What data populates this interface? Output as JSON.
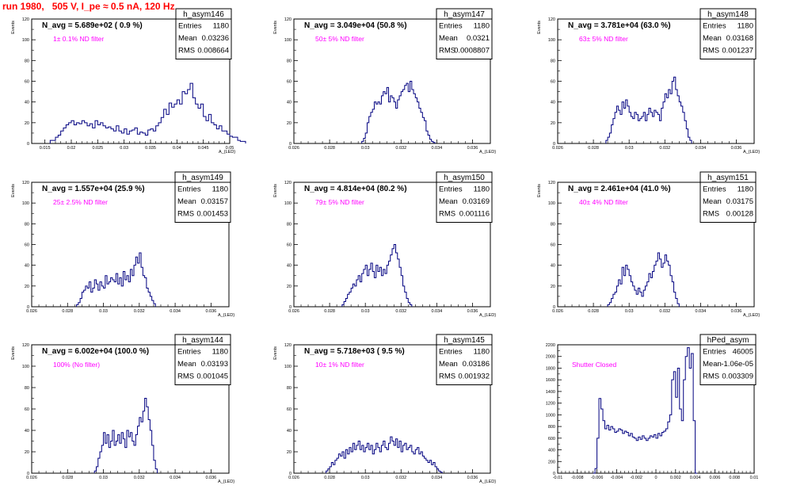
{
  "page_title": "run 1980,   505 V, I_pe ≈ 0.5 nA, 120 Hz",
  "colors": {
    "histogram": "#000080",
    "filter_label": "#ff00ff",
    "title": "#ff0000",
    "axis": "#000000"
  },
  "chart_data": [
    {
      "type": "histogram",
      "name": "h_asym146",
      "header": "N_avg = 5.689e+02 ( 0.9 %)",
      "label": "1± 0.1% ND filter",
      "stats": [
        [
          "Entries",
          "1180"
        ],
        [
          "Mean",
          "0.03236"
        ],
        [
          "RMS",
          "0.008664"
        ]
      ],
      "xlabel": "A_{LED}",
      "ylabel": "Events",
      "xlim": [
        0.0125,
        0.05
      ],
      "ylim": [
        0,
        120
      ],
      "xticks": [
        0.015,
        0.02,
        0.025,
        0.03,
        0.035,
        0.04,
        0.045,
        0.05
      ],
      "xticklabels": [
        "0.015",
        "0.02",
        "0.025",
        "0.03",
        "0.035",
        "0.04",
        "0.045",
        "0.05"
      ],
      "yticks": [
        0,
        20,
        40,
        60,
        80,
        100,
        120
      ],
      "yticklabels": [
        "0",
        "20",
        "40",
        "60",
        "80",
        "100",
        "120"
      ],
      "bin_width": 0.0005,
      "x0": 0.016,
      "values": [
        3,
        3,
        6,
        8,
        12,
        15,
        18,
        20,
        22,
        18,
        20,
        19,
        22,
        20,
        17,
        19,
        15,
        22,
        18,
        20,
        17,
        15,
        16,
        14,
        12,
        17,
        12,
        10,
        14,
        9,
        12,
        13,
        15,
        9,
        11,
        10,
        8,
        13,
        14,
        12,
        17,
        20,
        25,
        33,
        28,
        39,
        35,
        38,
        42,
        38,
        50,
        48,
        52,
        58,
        44,
        38,
        34,
        38,
        26,
        22,
        28,
        20,
        18,
        14,
        17,
        12,
        12,
        9,
        7,
        6,
        6,
        3,
        2,
        2
      ]
    },
    {
      "type": "histogram",
      "name": "h_asym147",
      "header": "N_avg = 3.049e+04 (50.8 %)",
      "label": "50± 5% ND filter",
      "stats": [
        [
          "Entries",
          "1180"
        ],
        [
          "Mean",
          "0.0321"
        ],
        [
          "RMS",
          "0.0008807"
        ]
      ],
      "xlabel": "A_{LED}",
      "ylabel": "Events",
      "xlim": [
        0.026,
        0.037
      ],
      "ylim": [
        0,
        120
      ],
      "xticks": [
        0.026,
        0.028,
        0.03,
        0.032,
        0.034,
        0.036
      ],
      "xticklabels": [
        "0.026",
        "0.028",
        "0.03",
        "0.032",
        "0.034",
        "0.036"
      ],
      "yticks": [
        0,
        20,
        40,
        60,
        80,
        100,
        120
      ],
      "yticklabels": [
        "0",
        "20",
        "40",
        "60",
        "80",
        "100",
        "120"
      ],
      "bin_width": 0.0001,
      "x0": 0.0298,
      "values": [
        2,
        5,
        10,
        20,
        26,
        30,
        33,
        40,
        38,
        40,
        38,
        46,
        50,
        48,
        54,
        40,
        46,
        44,
        40,
        34,
        42,
        46,
        50,
        52,
        56,
        58,
        50,
        60,
        52,
        48,
        44,
        40,
        34,
        30,
        25,
        22,
        12,
        8,
        4,
        2,
        1
      ]
    },
    {
      "type": "histogram",
      "name": "h_asym148",
      "header": "N_avg = 3.781e+04 (63.0 %)",
      "label": "63± 5% ND filter",
      "stats": [
        [
          "Entries",
          "1180"
        ],
        [
          "Mean",
          "0.03168"
        ],
        [
          "RMS",
          "0.001237"
        ]
      ],
      "xlabel": "A_{LED}",
      "ylabel": "Events",
      "xlim": [
        0.026,
        0.037
      ],
      "ylim": [
        0,
        120
      ],
      "xticks": [
        0.026,
        0.028,
        0.03,
        0.032,
        0.034,
        0.036
      ],
      "xticklabels": [
        "0.026",
        "0.028",
        "0.03",
        "0.032",
        "0.034",
        "0.036"
      ],
      "yticks": [
        0,
        20,
        40,
        60,
        80,
        100,
        120
      ],
      "yticklabels": [
        "0",
        "20",
        "40",
        "60",
        "80",
        "100",
        "120"
      ],
      "bin_width": 0.0001,
      "x0": 0.0287,
      "values": [
        3,
        6,
        10,
        18,
        24,
        30,
        36,
        32,
        28,
        40,
        34,
        42,
        36,
        30,
        26,
        24,
        30,
        28,
        22,
        24,
        26,
        30,
        22,
        28,
        34,
        30,
        26,
        32,
        30,
        28,
        22,
        34,
        40,
        48,
        44,
        52,
        48,
        60,
        64,
        52,
        46,
        40,
        36,
        30,
        22,
        14,
        6,
        3
      ]
    },
    {
      "type": "histogram",
      "name": "h_asym149",
      "header": "N_avg = 1.557e+04 (25.9 %)",
      "label": "25± 2.5% ND filter",
      "stats": [
        [
          "Entries",
          "1180"
        ],
        [
          "Mean",
          "0.03157"
        ],
        [
          "RMS",
          "0.001453"
        ]
      ],
      "xlabel": "A_{LED}",
      "ylabel": "Events",
      "xlim": [
        0.026,
        0.037
      ],
      "ylim": [
        0,
        120
      ],
      "xticks": [
        0.026,
        0.028,
        0.03,
        0.032,
        0.034,
        0.036
      ],
      "xticklabels": [
        "0.026",
        "0.028",
        "0.03",
        "0.032",
        "0.034",
        "0.036"
      ],
      "yticks": [
        0,
        20,
        40,
        60,
        80,
        100,
        120
      ],
      "yticklabels": [
        "0",
        "20",
        "40",
        "60",
        "80",
        "100",
        "120"
      ],
      "bin_width": 0.0001,
      "x0": 0.0285,
      "values": [
        2,
        4,
        8,
        14,
        16,
        20,
        18,
        24,
        14,
        18,
        26,
        22,
        16,
        24,
        20,
        18,
        30,
        22,
        24,
        28,
        26,
        24,
        32,
        22,
        28,
        20,
        34,
        26,
        30,
        24,
        36,
        30,
        40,
        48,
        42,
        52,
        38,
        30,
        28,
        18,
        14,
        10,
        6,
        3
      ]
    },
    {
      "type": "histogram",
      "name": "h_asym150",
      "header": "N_avg = 4.814e+04 (80.2 %)",
      "label": "79± 5% ND filter",
      "stats": [
        [
          "Entries",
          "1180"
        ],
        [
          "Mean",
          "0.03169"
        ],
        [
          "RMS",
          "0.001116"
        ]
      ],
      "xlabel": "A_{LED}",
      "ylabel": "Events",
      "xlim": [
        0.026,
        0.037
      ],
      "ylim": [
        0,
        120
      ],
      "xticks": [
        0.026,
        0.028,
        0.03,
        0.032,
        0.034,
        0.036
      ],
      "xticklabels": [
        "0.026",
        "0.028",
        "0.03",
        "0.032",
        "0.034",
        "0.036"
      ],
      "yticks": [
        0,
        20,
        40,
        60,
        80,
        100,
        120
      ],
      "yticklabels": [
        "0",
        "20",
        "40",
        "60",
        "80",
        "100",
        "120"
      ],
      "bin_width": 0.0001,
      "x0": 0.0287,
      "values": [
        2,
        5,
        8,
        12,
        14,
        18,
        22,
        20,
        26,
        30,
        24,
        32,
        36,
        40,
        30,
        36,
        42,
        34,
        28,
        40,
        34,
        38,
        30,
        36,
        32,
        40,
        44,
        50,
        56,
        60,
        52,
        46,
        38,
        30,
        20,
        14,
        8,
        4,
        2
      ]
    },
    {
      "type": "histogram",
      "name": "h_asym151",
      "header": "N_avg = 2.461e+04 (41.0 %)",
      "label": "40± 4% ND filter",
      "stats": [
        [
          "Entries",
          "1180"
        ],
        [
          "Mean",
          "0.03175"
        ],
        [
          "RMS",
          "0.00128"
        ]
      ],
      "xlabel": "A_{LED}",
      "ylabel": "Events",
      "xlim": [
        0.026,
        0.037
      ],
      "ylim": [
        0,
        120
      ],
      "xticks": [
        0.026,
        0.028,
        0.03,
        0.032,
        0.034,
        0.036
      ],
      "xticklabels": [
        "0.026",
        "0.028",
        "0.03",
        "0.032",
        "0.034",
        "0.036"
      ],
      "yticks": [
        0,
        20,
        40,
        60,
        80,
        100,
        120
      ],
      "yticklabels": [
        "0",
        "20",
        "40",
        "60",
        "80",
        "100",
        "120"
      ],
      "bin_width": 0.0001,
      "x0": 0.0288,
      "values": [
        2,
        4,
        8,
        12,
        14,
        20,
        26,
        22,
        38,
        30,
        40,
        36,
        30,
        24,
        20,
        16,
        12,
        18,
        14,
        10,
        16,
        20,
        24,
        32,
        28,
        34,
        40,
        44,
        52,
        46,
        38,
        42,
        50,
        44,
        40,
        30,
        24,
        14,
        8,
        3
      ]
    },
    {
      "type": "histogram",
      "name": "h_asym144",
      "header": "N_avg = 6.002e+04 (100.0 %)",
      "label": "100% (No filter)",
      "stats": [
        [
          "Entries",
          "1180"
        ],
        [
          "Mean",
          "0.03193"
        ],
        [
          "RMS",
          "0.001045"
        ]
      ],
      "xlabel": "A_{LED}",
      "ylabel": "Events",
      "xlim": [
        0.026,
        0.037
      ],
      "ylim": [
        0,
        120
      ],
      "xticks": [
        0.026,
        0.028,
        0.03,
        0.032,
        0.034,
        0.036
      ],
      "xticklabels": [
        "0.026",
        "0.028",
        "0.03",
        "0.032",
        "0.034",
        "0.036"
      ],
      "yticks": [
        0,
        20,
        40,
        60,
        80,
        100,
        120
      ],
      "yticklabels": [
        "0",
        "20",
        "40",
        "60",
        "80",
        "100",
        "120"
      ],
      "bin_width": 0.0001,
      "x0": 0.0295,
      "values": [
        2,
        6,
        14,
        20,
        26,
        38,
        28,
        36,
        24,
        30,
        40,
        26,
        30,
        36,
        28,
        38,
        32,
        24,
        40,
        34,
        38,
        30,
        26,
        36,
        44,
        52,
        48,
        58,
        70,
        62,
        50,
        40,
        26,
        12,
        4
      ]
    },
    {
      "type": "histogram",
      "name": "h_asym145",
      "header": "N_avg = 5.718e+03 ( 9.5 %)",
      "label": "10± 1% ND filter",
      "stats": [
        [
          "Entries",
          "1180"
        ],
        [
          "Mean",
          "0.03186"
        ],
        [
          "RMS",
          "0.001932"
        ]
      ],
      "xlabel": "A_{LED}",
      "ylabel": "Events",
      "xlim": [
        0.026,
        0.037
      ],
      "ylim": [
        0,
        120
      ],
      "xticks": [
        0.026,
        0.028,
        0.03,
        0.032,
        0.034,
        0.036
      ],
      "xticklabels": [
        "0.026",
        "0.028",
        "0.03",
        "0.032",
        "0.034",
        "0.036"
      ],
      "yticks": [
        0,
        20,
        40,
        60,
        80,
        100,
        120
      ],
      "yticklabels": [
        "0",
        "20",
        "40",
        "60",
        "80",
        "100",
        "120"
      ],
      "bin_width": 0.0001,
      "x0": 0.0278,
      "values": [
        2,
        4,
        6,
        10,
        8,
        12,
        14,
        18,
        16,
        20,
        14,
        22,
        18,
        24,
        20,
        28,
        22,
        26,
        30,
        22,
        26,
        20,
        24,
        28,
        22,
        26,
        18,
        22,
        28,
        24,
        20,
        26,
        30,
        24,
        22,
        28,
        34,
        30,
        26,
        32,
        24,
        30,
        20,
        26,
        28,
        22,
        24,
        26,
        20,
        18,
        22,
        24,
        18,
        20,
        16,
        14,
        12,
        10,
        12,
        8,
        10,
        6,
        4,
        2,
        1
      ]
    },
    {
      "type": "histogram",
      "name": "hPed_asym",
      "header": "",
      "label": "Shutter Closed",
      "stats": [
        [
          "Entries",
          "46005"
        ],
        [
          "Mean",
          "-1.06e-05"
        ],
        [
          "RMS",
          "0.003309"
        ]
      ],
      "xlabel": "",
      "ylabel": "",
      "xlim": [
        -0.01,
        0.01
      ],
      "ylim": [
        0,
        2200
      ],
      "xticks": [
        -0.01,
        -0.008,
        -0.006,
        -0.004,
        -0.002,
        0,
        0.002,
        0.004,
        0.006,
        0.008,
        0.01
      ],
      "xticklabels": [
        "-0.01",
        "-0.008",
        "-0.006",
        "-0.004",
        "-0.002",
        "0",
        "0.002",
        "0.004",
        "0.006",
        "0.008",
        "0.01"
      ],
      "yticks": [
        0,
        200,
        400,
        600,
        800,
        1000,
        1200,
        1400,
        1600,
        1800,
        2000,
        2200
      ],
      "yticklabels": [
        "0",
        "200",
        "400",
        "600",
        "800",
        "1000",
        "1200",
        "1400",
        "1600",
        "1800",
        "2000",
        "2200"
      ],
      "bin_width": 0.0002,
      "x0": -0.0064,
      "values": [
        0,
        80,
        600,
        1280,
        1100,
        900,
        760,
        820,
        740,
        800,
        760,
        700,
        720,
        760,
        740,
        680,
        720,
        700,
        640,
        680,
        620,
        600,
        560,
        620,
        580,
        640,
        600,
        560,
        600,
        640,
        620,
        660,
        600,
        680,
        640,
        700,
        720,
        760,
        880,
        1000,
        1600,
        1740,
        1300,
        1800,
        1100,
        900,
        1600,
        2000,
        2150,
        1800,
        2050,
        900,
        0
      ]
    }
  ]
}
